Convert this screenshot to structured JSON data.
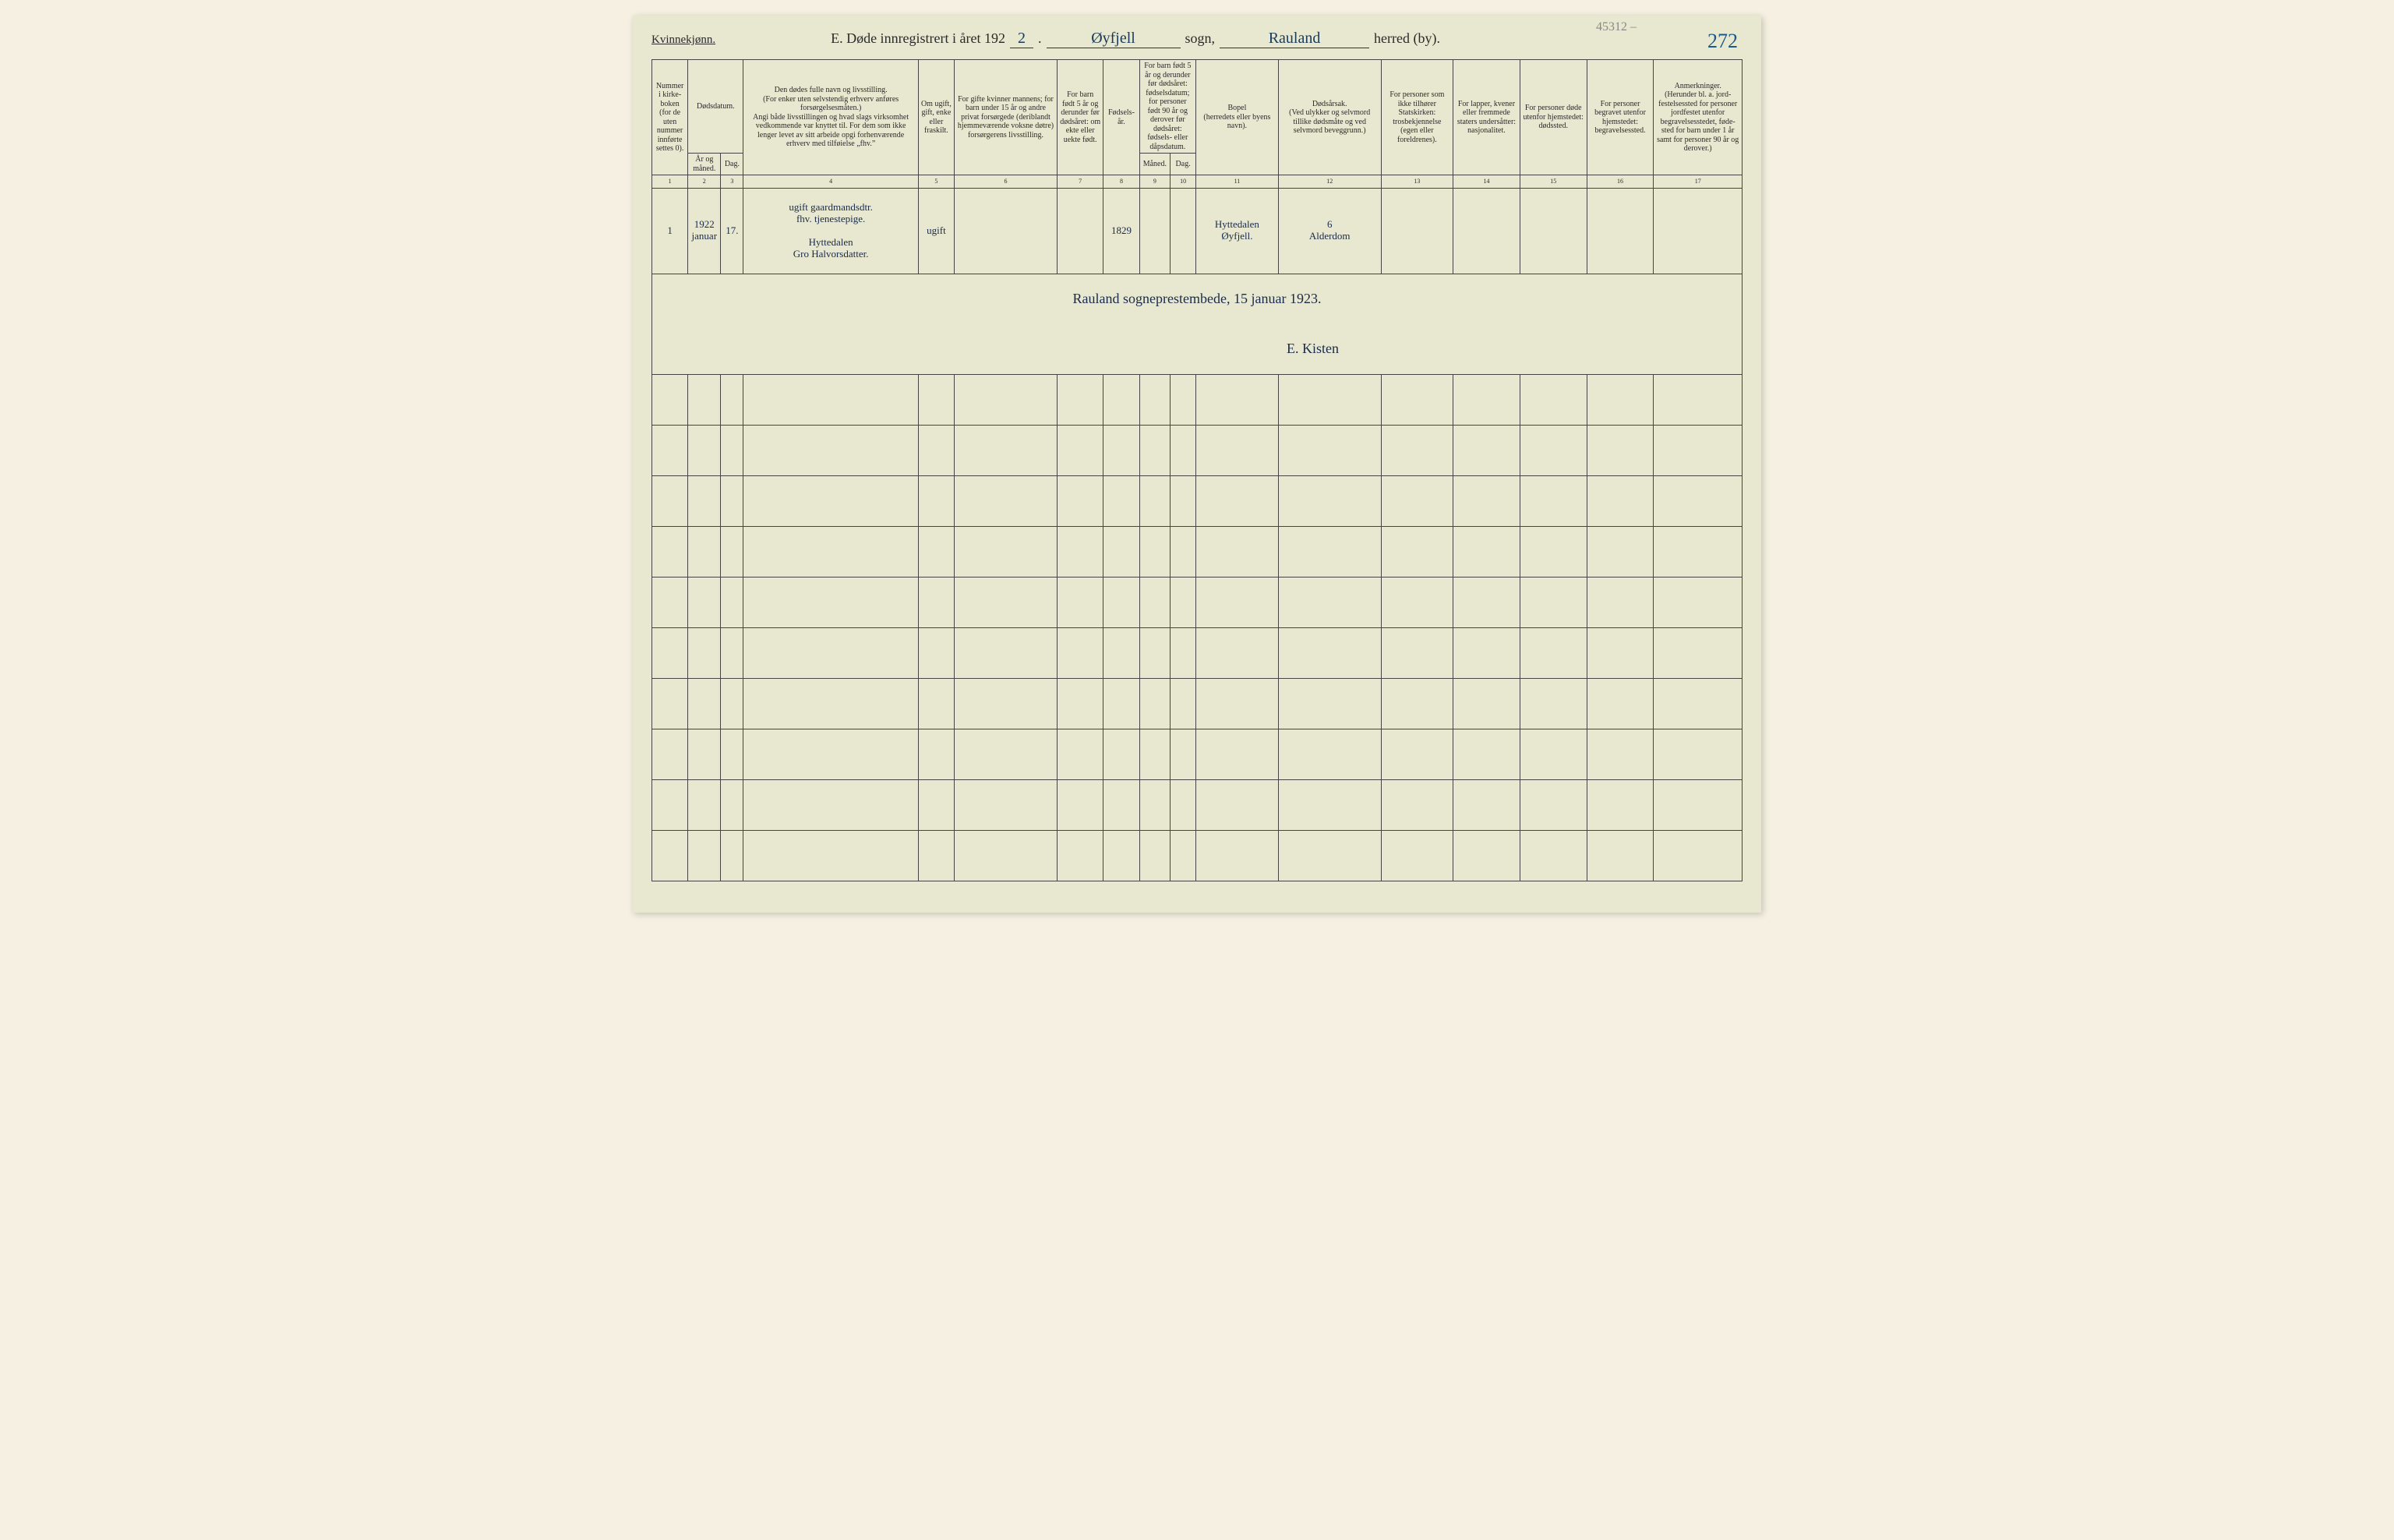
{
  "header": {
    "gender_label": "Kvinnekjønn.",
    "title_prefix": "E.  Døde innregistrert i året 192",
    "year_suffix": "2",
    "sogn_value": "Øyfjell",
    "sogn_label": "sogn,",
    "herred_value": "Rauland",
    "herred_label": "herred (by).",
    "page_number": "272",
    "pencil_note": "45312 –"
  },
  "columns": {
    "c1": "Nummer i kirke­boken (for de uten nummer innførte settes 0).",
    "c2_group": "Dødsdatum.",
    "c2": "År og måned.",
    "c3": "Dag.",
    "c4": "Den dødes fulle navn og livsstilling.\n(For enker uten selvstendig erhverv anføres forsørgelsesmåten.)\nAngi både livsstillingen og hvad slags virksomhet vedkommende var knyttet til. For dem som ikke lenger levet av sitt arbeide opgi forhenværende erhverv med tilføielse „fhv.”",
    "c5": "Om ugift, gift, enke eller fraskilt.",
    "c6": "For gifte kvinner mannens; for barn under 15 år og andre privat forsørgede (der­iblandt hjemmeværende voksne døtre) forsørgerens livsstilling.",
    "c7": "For barn født 5 år og derunder før døds­året: om ekte eller uekte født.",
    "c8": "Fødsels­år.",
    "c9_group": "For barn født 5 år og der­under før dødsåret: fødselsdatum; for personer født 90 år og derover før dødsåret: fødsels- eller dåpsdatum.",
    "c9": "Måned.",
    "c10": "Dag.",
    "c11": "Bopel\n(herredets eller byens navn).",
    "c12": "Dødsårsak.\n(Ved ulykker og selv­mord tillike dødsmåte og ved selvmord beveggrunn.)",
    "c13": "For personer som ikke tilhører Statskirken: trosbekjennelse (egen eller foreldrenes).",
    "c14": "For lapper, kvener eller fremmede staters undersåtter: nasjonalitet.",
    "c15": "For personer døde utenfor hjemstedet: dødssted.",
    "c16": "For personer begravet utenfor hjemstedet: begravelsessted.",
    "c17": "Anmerkninger.\n(Herunder bl. a. jord­festelsessted for per­soner jordfestet utenfor begravelsesstedet, føde­sted for barn under 1 år samt for personer 90 år og derover.)"
  },
  "colnums": [
    "1",
    "2",
    "3",
    "4",
    "5",
    "6",
    "7",
    "8",
    "9",
    "10",
    "11",
    "12",
    "13",
    "14",
    "15",
    "16",
    "17"
  ],
  "row1": {
    "num": "1",
    "year": "1922",
    "month": "januar",
    "day": "17.",
    "name_top": "ugift gaardmandsdtr.\nfhv. tjenestepige.",
    "name_bottom": "Hyttedalen\nGro Halvorsdatter.",
    "status": "ugift",
    "birth_year": "1829",
    "bopel": "Hyttedalen\nØyfjell.",
    "cause": "6\nAlderdom"
  },
  "signature": {
    "line": "Rauland   sogneprestembede,   15  januar   1923.",
    "name": "E. Kisten"
  },
  "layout": {
    "colwidths_pct": [
      3.5,
      3.2,
      2.2,
      17,
      3.5,
      10,
      4.5,
      3.5,
      3,
      2.5,
      8,
      10,
      7,
      6.5,
      6.5,
      6.5,
      8.6
    ]
  }
}
